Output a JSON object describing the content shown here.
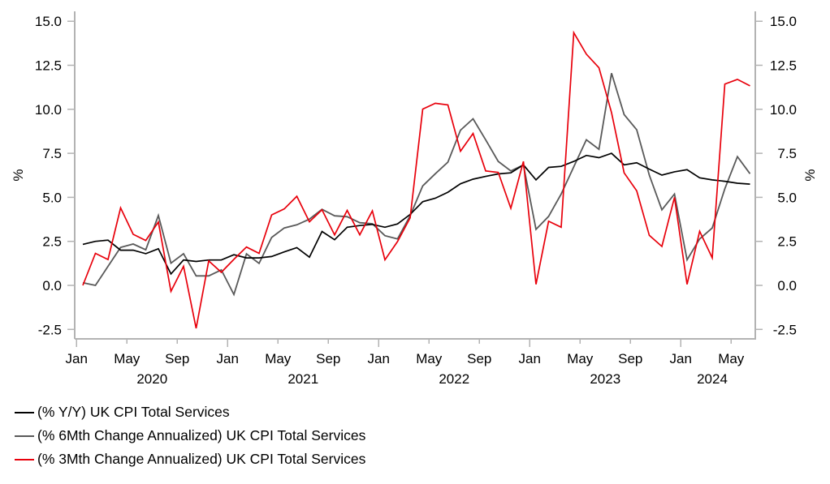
{
  "chart_data": {
    "type": "line",
    "title": "",
    "xlabel": "",
    "ylabel": "%",
    "ylabel_right": "%",
    "ylim": [
      -2.5,
      15.0
    ],
    "yticks": [
      "15.0",
      "12.5",
      "10.0",
      "7.5",
      "5.0",
      "2.5",
      "0.0",
      "-2.5"
    ],
    "ytick_values": [
      15.0,
      12.5,
      10.0,
      7.5,
      5.0,
      2.5,
      0.0,
      -2.5
    ],
    "grid": false,
    "legend_position": "bottom-left",
    "x_start": "2020-01",
    "x_frequency": "monthly",
    "month_ticks": [
      {
        "label": "Jan",
        "month_index": 0
      },
      {
        "label": "May",
        "month_index": 4
      },
      {
        "label": "Sep",
        "month_index": 8
      },
      {
        "label": "Jan",
        "month_index": 12
      },
      {
        "label": "May",
        "month_index": 16
      },
      {
        "label": "Sep",
        "month_index": 20
      },
      {
        "label": "Jan",
        "month_index": 24
      },
      {
        "label": "May",
        "month_index": 28
      },
      {
        "label": "Sep",
        "month_index": 32
      },
      {
        "label": "Jan",
        "month_index": 36
      },
      {
        "label": "May",
        "month_index": 40
      },
      {
        "label": "Sep",
        "month_index": 44
      },
      {
        "label": "Jan",
        "month_index": 48
      },
      {
        "label": "May",
        "month_index": 52
      }
    ],
    "year_labels": [
      {
        "label": "2020",
        "center_month": 6
      },
      {
        "label": "2021",
        "center_month": 18
      },
      {
        "label": "2022",
        "center_month": 30
      },
      {
        "label": "2023",
        "center_month": 42
      },
      {
        "label": "2024",
        "center_month": 50.5
      }
    ],
    "series": [
      {
        "name": "(% Y/Y) UK CPI Total Services",
        "color": "#000000",
        "values": [
          2.33,
          2.5,
          2.57,
          2.0,
          2.0,
          1.8,
          2.08,
          0.65,
          1.44,
          1.36,
          1.44,
          1.44,
          1.74,
          1.56,
          1.56,
          1.64,
          1.9,
          2.14,
          1.6,
          3.06,
          2.59,
          3.3,
          3.4,
          3.46,
          3.3,
          3.49,
          4.03,
          4.75,
          4.95,
          5.29,
          5.77,
          6.03,
          6.19,
          6.33,
          6.39,
          6.84,
          5.99,
          6.7,
          6.76,
          7.04,
          7.38,
          7.25,
          7.5,
          6.84,
          6.96,
          6.6,
          6.26,
          6.45,
          6.57,
          6.11,
          5.99,
          5.91,
          5.8,
          5.75
        ]
      },
      {
        "name": "(% 6Mth Change Annualized) UK CPI Total Services",
        "color": "#595959",
        "values": [
          0.15,
          0.0,
          1.08,
          2.16,
          2.35,
          2.02,
          3.97,
          1.26,
          1.8,
          0.54,
          0.54,
          0.88,
          -0.52,
          1.79,
          1.25,
          2.72,
          3.26,
          3.44,
          3.76,
          4.32,
          3.95,
          3.9,
          3.56,
          3.5,
          2.82,
          2.64,
          3.95,
          5.65,
          6.34,
          7.0,
          8.81,
          9.46,
          8.27,
          7.04,
          6.5,
          6.84,
          3.18,
          3.92,
          5.19,
          6.73,
          8.27,
          7.73,
          12.05,
          9.7,
          8.84,
          6.26,
          4.29,
          5.19,
          1.45,
          2.64,
          3.26,
          5.49,
          7.31,
          6.34
        ]
      },
      {
        "name": "(% 3Mth Change Annualized) UK CPI Total Services",
        "color": "#e8000b",
        "values": [
          0.0,
          1.82,
          1.47,
          4.4,
          2.9,
          2.55,
          3.6,
          -0.34,
          1.08,
          -2.44,
          1.39,
          0.74,
          1.48,
          2.18,
          1.82,
          4.0,
          4.34,
          5.06,
          3.61,
          4.29,
          2.87,
          4.26,
          2.87,
          4.23,
          1.45,
          2.49,
          3.83,
          10.01,
          10.34,
          10.25,
          7.62,
          8.63,
          6.5,
          6.42,
          4.38,
          7.04,
          0.06,
          3.64,
          3.3,
          14.35,
          13.13,
          12.36,
          9.81,
          6.39,
          5.37,
          2.84,
          2.21,
          5.0,
          0.06,
          3.07,
          1.56,
          11.43,
          11.7,
          11.33
        ]
      }
    ]
  }
}
